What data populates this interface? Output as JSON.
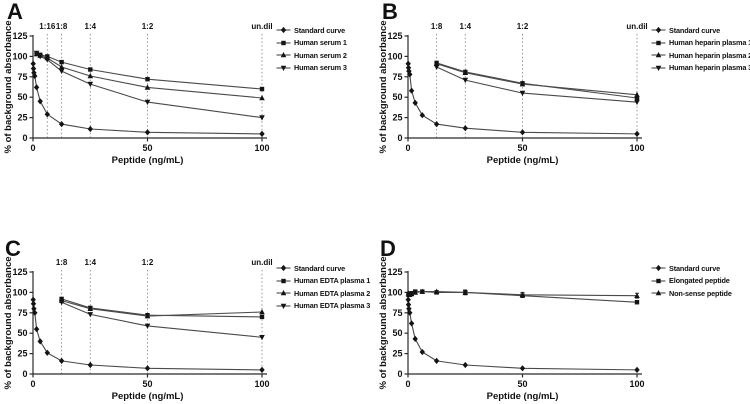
{
  "colors": {
    "background": "#ffffff",
    "text": "#111111",
    "curve_line": "#4a4a4a",
    "marker": "#141414",
    "dotted_line": "#8c8c8c",
    "axis": "#2b2b2b"
  },
  "chart_data": [
    {
      "panel": "A",
      "type": "line",
      "xlabel": "Peptide (ng/mL)",
      "ylabel": "% of background absorbance",
      "xlim": [
        0,
        100
      ],
      "ylim": [
        0,
        125
      ],
      "xticks": [
        0,
        50,
        100
      ],
      "yticks": [
        0,
        25,
        50,
        75,
        100,
        125
      ],
      "grid": false,
      "legend_position": "right",
      "dilution_lines": [
        {
          "x": 6.25,
          "label": "1:16"
        },
        {
          "x": 12.5,
          "label": "1:8"
        },
        {
          "x": 25,
          "label": "1:4"
        },
        {
          "x": 50,
          "label": "1:2"
        },
        {
          "x": 100,
          "label": "un.dil"
        }
      ],
      "series": [
        {
          "name": "Standard curve",
          "marker": "diamond",
          "x": [
            0.1,
            0.2,
            0.39,
            0.78,
            1.56,
            3.13,
            6.25,
            12.5,
            25,
            50,
            100
          ],
          "y": [
            91,
            85,
            80,
            76,
            62,
            45,
            29,
            17,
            11,
            7,
            5
          ]
        },
        {
          "name": "Human serum 1",
          "marker": "square",
          "x": [
            1.56,
            3.13,
            6.25,
            12.5,
            25,
            50,
            100
          ],
          "y": [
            103,
            102,
            100,
            93,
            84,
            72,
            60
          ]
        },
        {
          "name": "Human serum 2",
          "marker": "triangle-up",
          "x": [
            1.56,
            3.13,
            6.25,
            12.5,
            25,
            50,
            100
          ],
          "y": [
            103,
            101,
            98,
            87,
            76,
            62,
            49
          ]
        },
        {
          "name": "Human serum 3",
          "marker": "triangle-down",
          "x": [
            1.56,
            3.13,
            6.25,
            12.5,
            25,
            50,
            100
          ],
          "y": [
            104,
            100,
            96,
            82,
            66,
            44,
            25
          ]
        }
      ]
    },
    {
      "panel": "B",
      "type": "line",
      "xlabel": "Peptide (ng/mL)",
      "ylabel": "% of background absorbance",
      "xlim": [
        0,
        100
      ],
      "ylim": [
        0,
        125
      ],
      "xticks": [
        0,
        50,
        100
      ],
      "yticks": [
        0,
        25,
        50,
        75,
        100,
        125
      ],
      "grid": false,
      "legend_position": "right",
      "dilution_lines": [
        {
          "x": 12.5,
          "label": "1:8"
        },
        {
          "x": 25,
          "label": "1:4"
        },
        {
          "x": 50,
          "label": "1:2"
        },
        {
          "x": 100,
          "label": "un.dil"
        }
      ],
      "series": [
        {
          "name": "Standard curve",
          "marker": "diamond",
          "x": [
            0.1,
            0.2,
            0.39,
            0.78,
            1.56,
            3.13,
            6.25,
            12.5,
            25,
            50,
            100
          ],
          "y": [
            91,
            86,
            82,
            78,
            58,
            43,
            28,
            17,
            12,
            7,
            5
          ]
        },
        {
          "name": "Human heparin plasma 1",
          "marker": "square",
          "x": [
            12.5,
            25,
            50,
            100
          ],
          "y": [
            92,
            81,
            67,
            49
          ]
        },
        {
          "name": "Human heparin plasma 2",
          "marker": "triangle-up",
          "x": [
            12.5,
            25,
            50,
            100
          ],
          "y": [
            91,
            80,
            66,
            53
          ]
        },
        {
          "name": "Human heparin plasma 3",
          "marker": "triangle-down",
          "x": [
            12.5,
            25,
            50,
            100
          ],
          "y": [
            87,
            71,
            55,
            44
          ]
        }
      ]
    },
    {
      "panel": "C",
      "type": "line",
      "xlabel": "Peptide (ng/mL)",
      "ylabel": "% of background absorbance",
      "xlim": [
        0,
        100
      ],
      "ylim": [
        0,
        125
      ],
      "xticks": [
        0,
        50,
        100
      ],
      "yticks": [
        0,
        25,
        50,
        75,
        100,
        125
      ],
      "grid": false,
      "legend_position": "right",
      "dilution_lines": [
        {
          "x": 12.5,
          "label": "1:8"
        },
        {
          "x": 25,
          "label": "1:4"
        },
        {
          "x": 50,
          "label": "1:2"
        },
        {
          "x": 100,
          "label": "un.dil"
        }
      ],
      "series": [
        {
          "name": "Standard curve",
          "marker": "diamond",
          "x": [
            0.1,
            0.2,
            0.39,
            0.78,
            1.56,
            3.13,
            6.25,
            12.5,
            25,
            50,
            100
          ],
          "y": [
            91,
            86,
            80,
            75,
            55,
            40,
            26,
            16,
            11,
            7,
            5
          ]
        },
        {
          "name": "Human EDTA plasma 1",
          "marker": "square",
          "x": [
            12.5,
            25,
            50,
            100
          ],
          "y": [
            92,
            81,
            72,
            70
          ]
        },
        {
          "name": "Human EDTA plasma 2",
          "marker": "triangle-up",
          "x": [
            12.5,
            25,
            50,
            100
          ],
          "y": [
            90,
            80,
            71,
            76
          ]
        },
        {
          "name": "Human EDTA plasma 3",
          "marker": "triangle-down",
          "x": [
            12.5,
            25,
            50,
            100
          ],
          "y": [
            88,
            73,
            59,
            45
          ]
        }
      ]
    },
    {
      "panel": "D",
      "type": "line",
      "xlabel": "Peptide (ng/mL)",
      "ylabel": "% of background absorbance",
      "xlim": [
        0,
        100
      ],
      "ylim": [
        0,
        125
      ],
      "xticks": [
        0,
        50,
        100
      ],
      "yticks": [
        0,
        25,
        50,
        75,
        100,
        125
      ],
      "grid": false,
      "legend_position": "right",
      "dilution_lines": [],
      "series": [
        {
          "name": "Standard curve",
          "marker": "diamond",
          "x": [
            0.1,
            0.2,
            0.39,
            0.78,
            1.56,
            3.13,
            6.25,
            12.5,
            25,
            50,
            100
          ],
          "y": [
            91,
            85,
            80,
            75,
            62,
            43,
            27,
            16,
            11,
            7,
            5
          ]
        },
        {
          "name": "Elongated peptide",
          "marker": "square",
          "x": [
            0.2,
            0.39,
            0.78,
            1.56,
            3.13,
            6.25,
            12.5,
            25,
            50,
            100
          ],
          "y": [
            97,
            98,
            97,
            99,
            101,
            101,
            100,
            100,
            96,
            88
          ],
          "yerr": [
            1,
            1,
            1,
            1,
            2,
            1,
            2,
            3,
            2,
            2
          ]
        },
        {
          "name": "Non-sense peptide",
          "marker": "triangle-up",
          "x": [
            0.2,
            0.39,
            0.78,
            1.56,
            3.13,
            6.25,
            12.5,
            25,
            50,
            100
          ],
          "y": [
            99,
            97,
            98,
            98,
            100,
            101,
            101,
            100,
            97,
            96
          ],
          "yerr": [
            1,
            1,
            1,
            1,
            1,
            1,
            1,
            2,
            3,
            3
          ]
        }
      ]
    }
  ]
}
